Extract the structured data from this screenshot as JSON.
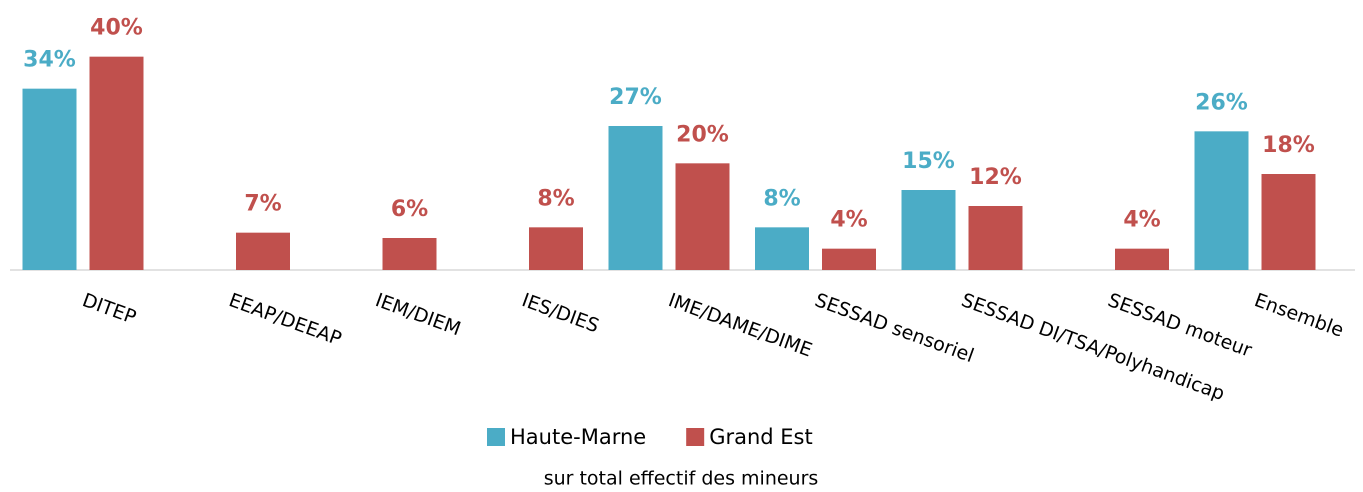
{
  "chart_data": {
    "type": "bar",
    "subtitle": "sur total effectif des mineurs",
    "categories": [
      "DITEP",
      "EEAP/DEEAP",
      "IEM/DIEM",
      "IES/DIES",
      "IME/DAME/DIME",
      "SESSAD sensoriel",
      "SESSAD DI/TSA/Polyhandicap",
      "SESSAD moteur",
      "Ensemble"
    ],
    "series": [
      {
        "name": "Haute-Marne",
        "color": "#4bacc6",
        "values": [
          34,
          null,
          null,
          null,
          27,
          8,
          15,
          null,
          26
        ],
        "value_labels": [
          "34%",
          null,
          null,
          null,
          "27%",
          "8%",
          "15%",
          null,
          "26%"
        ]
      },
      {
        "name": "Grand Est",
        "color": "#c0504d",
        "values": [
          40,
          7,
          6,
          8,
          20,
          4,
          12,
          4,
          18
        ],
        "value_labels": [
          "40%",
          "7%",
          "6%",
          "8%",
          "20%",
          "4%",
          "12%",
          "4%",
          "18%"
        ]
      }
    ],
    "ylim": [
      0,
      45
    ],
    "grid": false
  }
}
